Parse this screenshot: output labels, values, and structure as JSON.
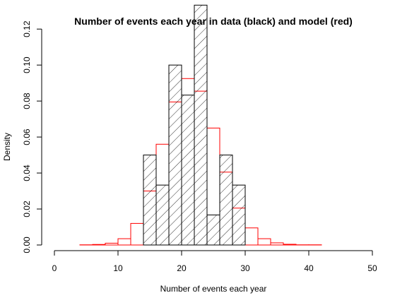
{
  "chart_data": {
    "type": "bar",
    "title": "Number of events each year in data (black) and model (red)",
    "xlabel": "Number of events each year",
    "ylabel": "Density",
    "xlim": [
      0,
      50
    ],
    "ylim": [
      0,
      0.13
    ],
    "grid": false,
    "bin_width": 2,
    "x_ticks": [
      0,
      10,
      20,
      30,
      40,
      50
    ],
    "x_tick_labels": [
      "0",
      "10",
      "20",
      "30",
      "40",
      "50"
    ],
    "y_ticks": [
      0.0,
      0.02,
      0.04,
      0.06,
      0.08,
      0.1,
      0.12
    ],
    "y_tick_labels": [
      "0.00",
      "0.02",
      "0.04",
      "0.06",
      "0.08",
      "0.10",
      "0.12"
    ],
    "series": [
      {
        "color": "#000000",
        "fill": "hatched",
        "bin_starts": [
          14,
          16,
          18,
          20,
          22,
          24,
          26,
          28
        ],
        "values": [
          0.05,
          0.0333,
          0.1,
          0.0833,
          0.1333,
          0.0167,
          0.05,
          0.0333
        ]
      },
      {
        "color": "#ff0000",
        "fill": "none",
        "bin_starts": [
          4,
          6,
          8,
          10,
          12,
          14,
          16,
          18,
          20,
          22,
          24,
          26,
          28,
          30,
          32,
          34,
          36,
          38,
          40
        ],
        "values": [
          0.0001,
          0.0003,
          0.001,
          0.0035,
          0.012,
          0.03,
          0.056,
          0.0795,
          0.0925,
          0.0855,
          0.065,
          0.0405,
          0.0205,
          0.0095,
          0.0035,
          0.0012,
          0.0004,
          0.0001,
          0.0001
        ]
      }
    ]
  }
}
